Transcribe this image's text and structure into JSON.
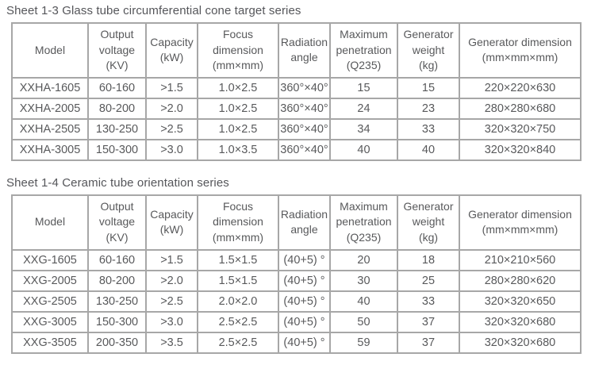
{
  "colors": {
    "text": "#58595b",
    "table_border": "#a7a7a7",
    "background": "#ffffff"
  },
  "tables": [
    {
      "title": "Sheet 1-3 Glass tube circumferential cone target series",
      "headers": [
        [
          "Model"
        ],
        [
          "Output",
          "voltage",
          "(KV)"
        ],
        [
          "Capacity",
          "(kW)"
        ],
        [
          "Focus",
          "dimension",
          "(mm×mm)"
        ],
        [
          "Radiation",
          "angle"
        ],
        [
          "Maximum",
          "penetration",
          "(Q235)"
        ],
        [
          "Generator",
          "weight",
          "(kg)"
        ],
        [
          "Generator dimension",
          "(mm×mm×mm)"
        ]
      ],
      "rows": [
        [
          "XXHA-1605",
          "60-160",
          ">1.5",
          "1.0×2.5",
          "360°×40°",
          "15",
          "15",
          "220×220×630"
        ],
        [
          "XXHA-2005",
          "80-200",
          ">2.0",
          "1.0×2.5",
          "360°×40°",
          "24",
          "23",
          "280×280×680"
        ],
        [
          "XXHA-2505",
          "130-250",
          ">2.5",
          "1.0×2.5",
          "360°×40°",
          "34",
          "33",
          "320×320×750"
        ],
        [
          "XXHA-3005",
          "150-300",
          ">3.0",
          "1.0×3.5",
          "360°×40°",
          "40",
          "40",
          "320×320×840"
        ]
      ]
    },
    {
      "title": "Sheet 1-4 Ceramic tube orientation series",
      "headers": [
        [
          "Model"
        ],
        [
          "Output",
          "voltage",
          "(KV)"
        ],
        [
          "Capacity",
          "(kW)"
        ],
        [
          "Focus",
          "dimension",
          "(mm×mm)"
        ],
        [
          "Radiation",
          "angle"
        ],
        [
          "Maximum",
          "penetration",
          "(Q235)"
        ],
        [
          "Generator",
          "weight",
          "(kg)"
        ],
        [
          "Generator dimension",
          "(mm×mm×mm)"
        ]
      ],
      "rows": [
        [
          "XXG-1605",
          "60-160",
          ">1.5",
          "1.5×1.5",
          "(40+5) °",
          "20",
          "18",
          "210×210×560"
        ],
        [
          "XXG-2005",
          "80-200",
          ">2.0",
          "1.5×1.5",
          "(40+5) °",
          "30",
          "25",
          "280×280×620"
        ],
        [
          "XXG-2505",
          "130-250",
          ">2.5",
          "2.0×2.0",
          "(40+5) °",
          "40",
          "33",
          "320×320×650"
        ],
        [
          "XXG-3005",
          "150-300",
          ">3.0",
          "2.5×2.5",
          "(40+5) °",
          "50",
          "37",
          "320×320×680"
        ],
        [
          "XXG-3505",
          "200-350",
          ">3.5",
          "2.5×2.5",
          "(40+5) °",
          "59",
          "37",
          "320×320×680"
        ]
      ]
    }
  ]
}
